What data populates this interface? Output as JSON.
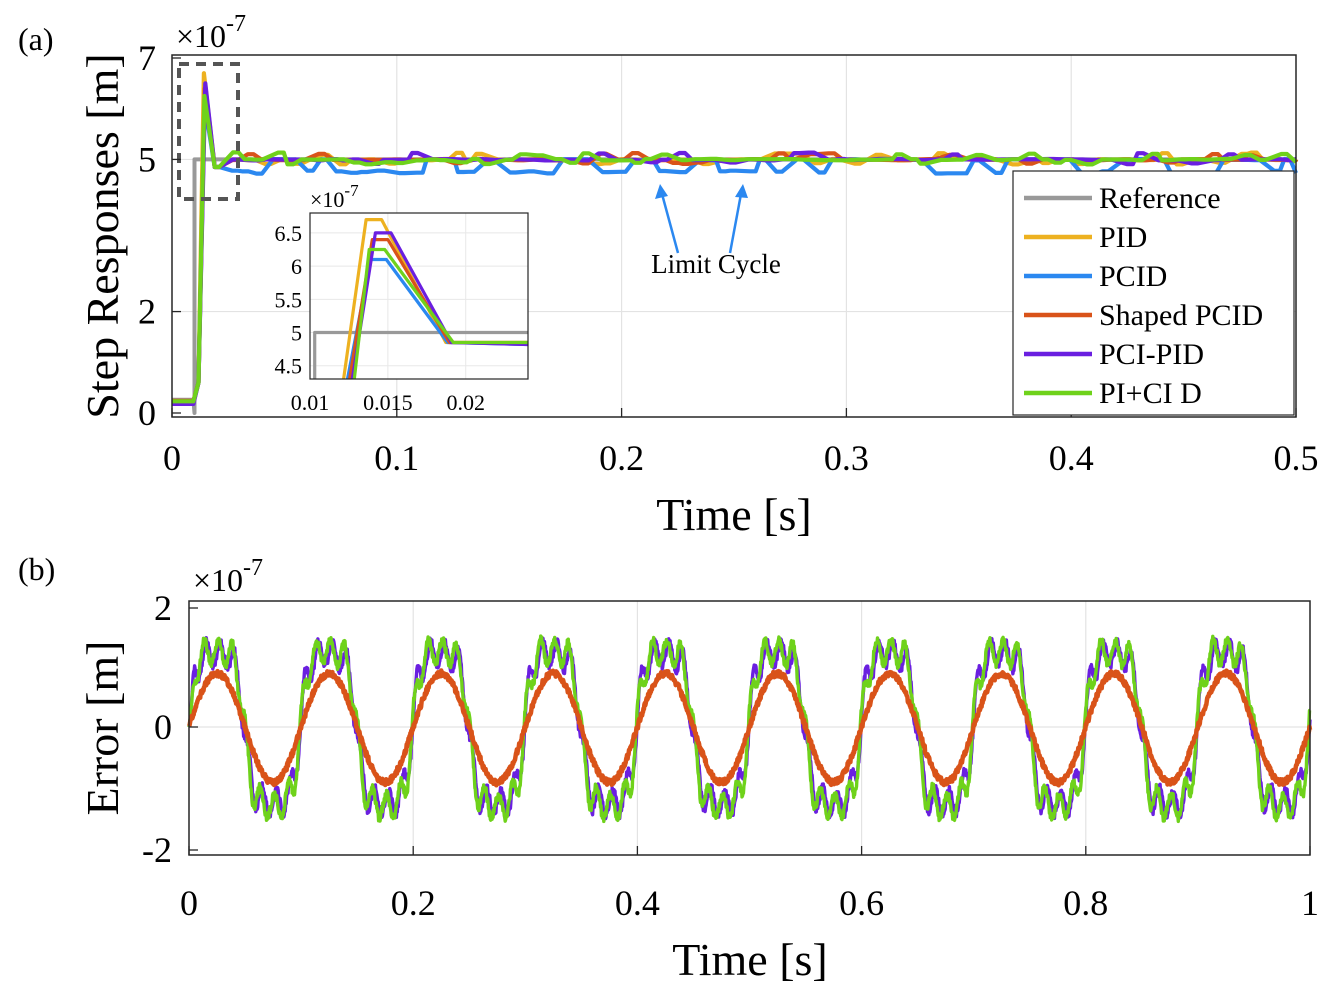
{
  "chart_data": [
    {
      "panel_label": "(a)",
      "type": "line",
      "xlabel": "Time [s]",
      "ylabel": "Step Responses [m]",
      "exponent_label": "×10",
      "exponent_power": "-7",
      "xlim": [
        0,
        0.5
      ],
      "ylim": [
        0,
        7
      ],
      "xticks": [
        0,
        0.1,
        0.2,
        0.3,
        0.4,
        0.5
      ],
      "xtick_labels": [
        "0",
        "0.1",
        "0.2",
        "0.3",
        "0.4",
        "0.5"
      ],
      "yticks": [
        0,
        2,
        5,
        7
      ],
      "ytick_labels": [
        "0",
        "2",
        "5",
        "7"
      ],
      "grid": true,
      "legend_position": "bottom-right",
      "step_time": 0.01,
      "reference_level": 5,
      "settled_level": 4.85,
      "series": [
        {
          "name": "Reference",
          "color": "#999999",
          "peak": 5,
          "peak_time": 0.01
        },
        {
          "name": "PID",
          "color": "#EDB120",
          "peak": 6.7,
          "peak_time": 0.0142
        },
        {
          "name": "PCID",
          "color": "#2B88F0",
          "peak": 6.1,
          "peak_time": 0.0145
        },
        {
          "name": "Shaped PCID",
          "color": "#D95319",
          "peak": 6.4,
          "peak_time": 0.0146
        },
        {
          "name": "PCI-PID",
          "color": "#6A1FE0",
          "peak": 6.5,
          "peak_time": 0.0148
        },
        {
          "name": "PI+CI D",
          "color": "#6FD21B",
          "peak": 6.25,
          "peak_time": 0.0144
        }
      ],
      "annotation": "Limit Cycle",
      "inset": {
        "exponent_label": "×10",
        "exponent_power": "-7",
        "xlim": [
          0.01,
          0.024
        ],
        "ylim": [
          4.3,
          6.8
        ],
        "xticks": [
          0.01,
          0.015,
          0.02
        ],
        "xtick_labels": [
          "0.01",
          "0.015",
          "0.02"
        ],
        "yticks": [
          4.5,
          5,
          5.5,
          6,
          6.5
        ],
        "ytick_labels": [
          "4.5",
          "5",
          "5.5",
          "6",
          "6.5"
        ]
      }
    },
    {
      "panel_label": "(b)",
      "type": "line",
      "xlabel": "Time [s]",
      "ylabel": "Error [m]",
      "exponent_label": "×10",
      "exponent_power": "-7",
      "xlim": [
        0,
        1
      ],
      "ylim": [
        -2,
        2
      ],
      "xticks": [
        0,
        0.2,
        0.4,
        0.6,
        0.8,
        1
      ],
      "xtick_labels": [
        "0",
        "0.2",
        "0.4",
        "0.6",
        "0.8",
        "1"
      ],
      "yticks": [
        -2,
        0,
        2
      ],
      "ytick_labels": [
        "-2",
        "0",
        "2"
      ],
      "grid": true,
      "period": 0.1,
      "series": [
        {
          "name": "PCI-PID",
          "color": "#6A1FE0",
          "amplitude": 1.45
        },
        {
          "name": "PI+CI D",
          "color": "#6FD21B",
          "amplitude": 1.5
        },
        {
          "name": "Shaped PCID",
          "color": "#D95319",
          "amplitude": 0.9
        }
      ]
    }
  ]
}
